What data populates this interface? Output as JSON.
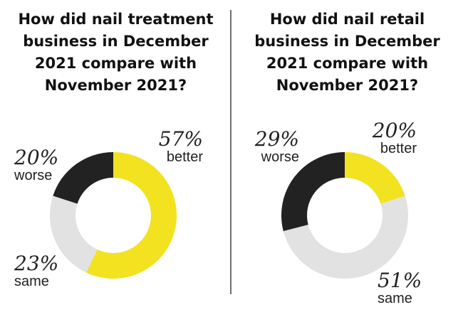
{
  "colors": {
    "better": "#f2e21f",
    "same": "#e2e2e2",
    "worse": "#222222"
  },
  "chart_data": [
    {
      "type": "pie",
      "title_lines": [
        "How did nail treatment",
        "business in December",
        "2021 compare with",
        "November 2021?"
      ],
      "categories": [
        "better",
        "same",
        "worse"
      ],
      "values": [
        57,
        23,
        20
      ],
      "labels": [
        "57%",
        "23%",
        "20%"
      ]
    },
    {
      "type": "pie",
      "title_lines": [
        "How did nail retail",
        "business in December",
        "2021 compare with",
        "November 2021?"
      ],
      "categories": [
        "better",
        "same",
        "worse"
      ],
      "values": [
        20,
        51,
        29
      ],
      "labels": [
        "20%",
        "51%",
        "29%"
      ]
    }
  ]
}
